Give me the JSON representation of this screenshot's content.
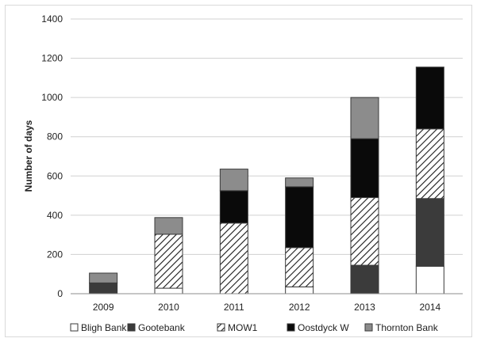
{
  "chart_data": {
    "type": "bar",
    "stacked": true,
    "title": "",
    "xlabel": "",
    "ylabel": "Number of days",
    "ylim": [
      0,
      1400
    ],
    "yticks": [
      "0",
      "200",
      "400",
      "600",
      "800",
      "1000",
      "1200",
      "1400"
    ],
    "grid": true,
    "legend_position": "bottom",
    "categories": [
      "2009",
      "2010",
      "2011",
      "2012",
      "2013",
      "2014"
    ],
    "series": [
      {
        "name": "Bligh Bank",
        "style": "white",
        "color": "#ffffff",
        "values": [
          0,
          28,
          0,
          35,
          0,
          140
        ]
      },
      {
        "name": "Gootebank",
        "style": "darkgray",
        "color": "#3b3b3b",
        "values": [
          55,
          0,
          0,
          0,
          145,
          345
        ]
      },
      {
        "name": "MOW1",
        "style": "hatch",
        "color": "#ffffff",
        "values": [
          0,
          275,
          360,
          200,
          345,
          355
        ]
      },
      {
        "name": "Oostdyck W",
        "style": "black",
        "color": "#0a0a0a",
        "values": [
          0,
          0,
          165,
          310,
          300,
          315
        ]
      },
      {
        "name": "Thornton Bank",
        "style": "gray",
        "color": "#8c8c8c",
        "values": [
          50,
          85,
          110,
          45,
          210,
          0
        ]
      }
    ]
  }
}
